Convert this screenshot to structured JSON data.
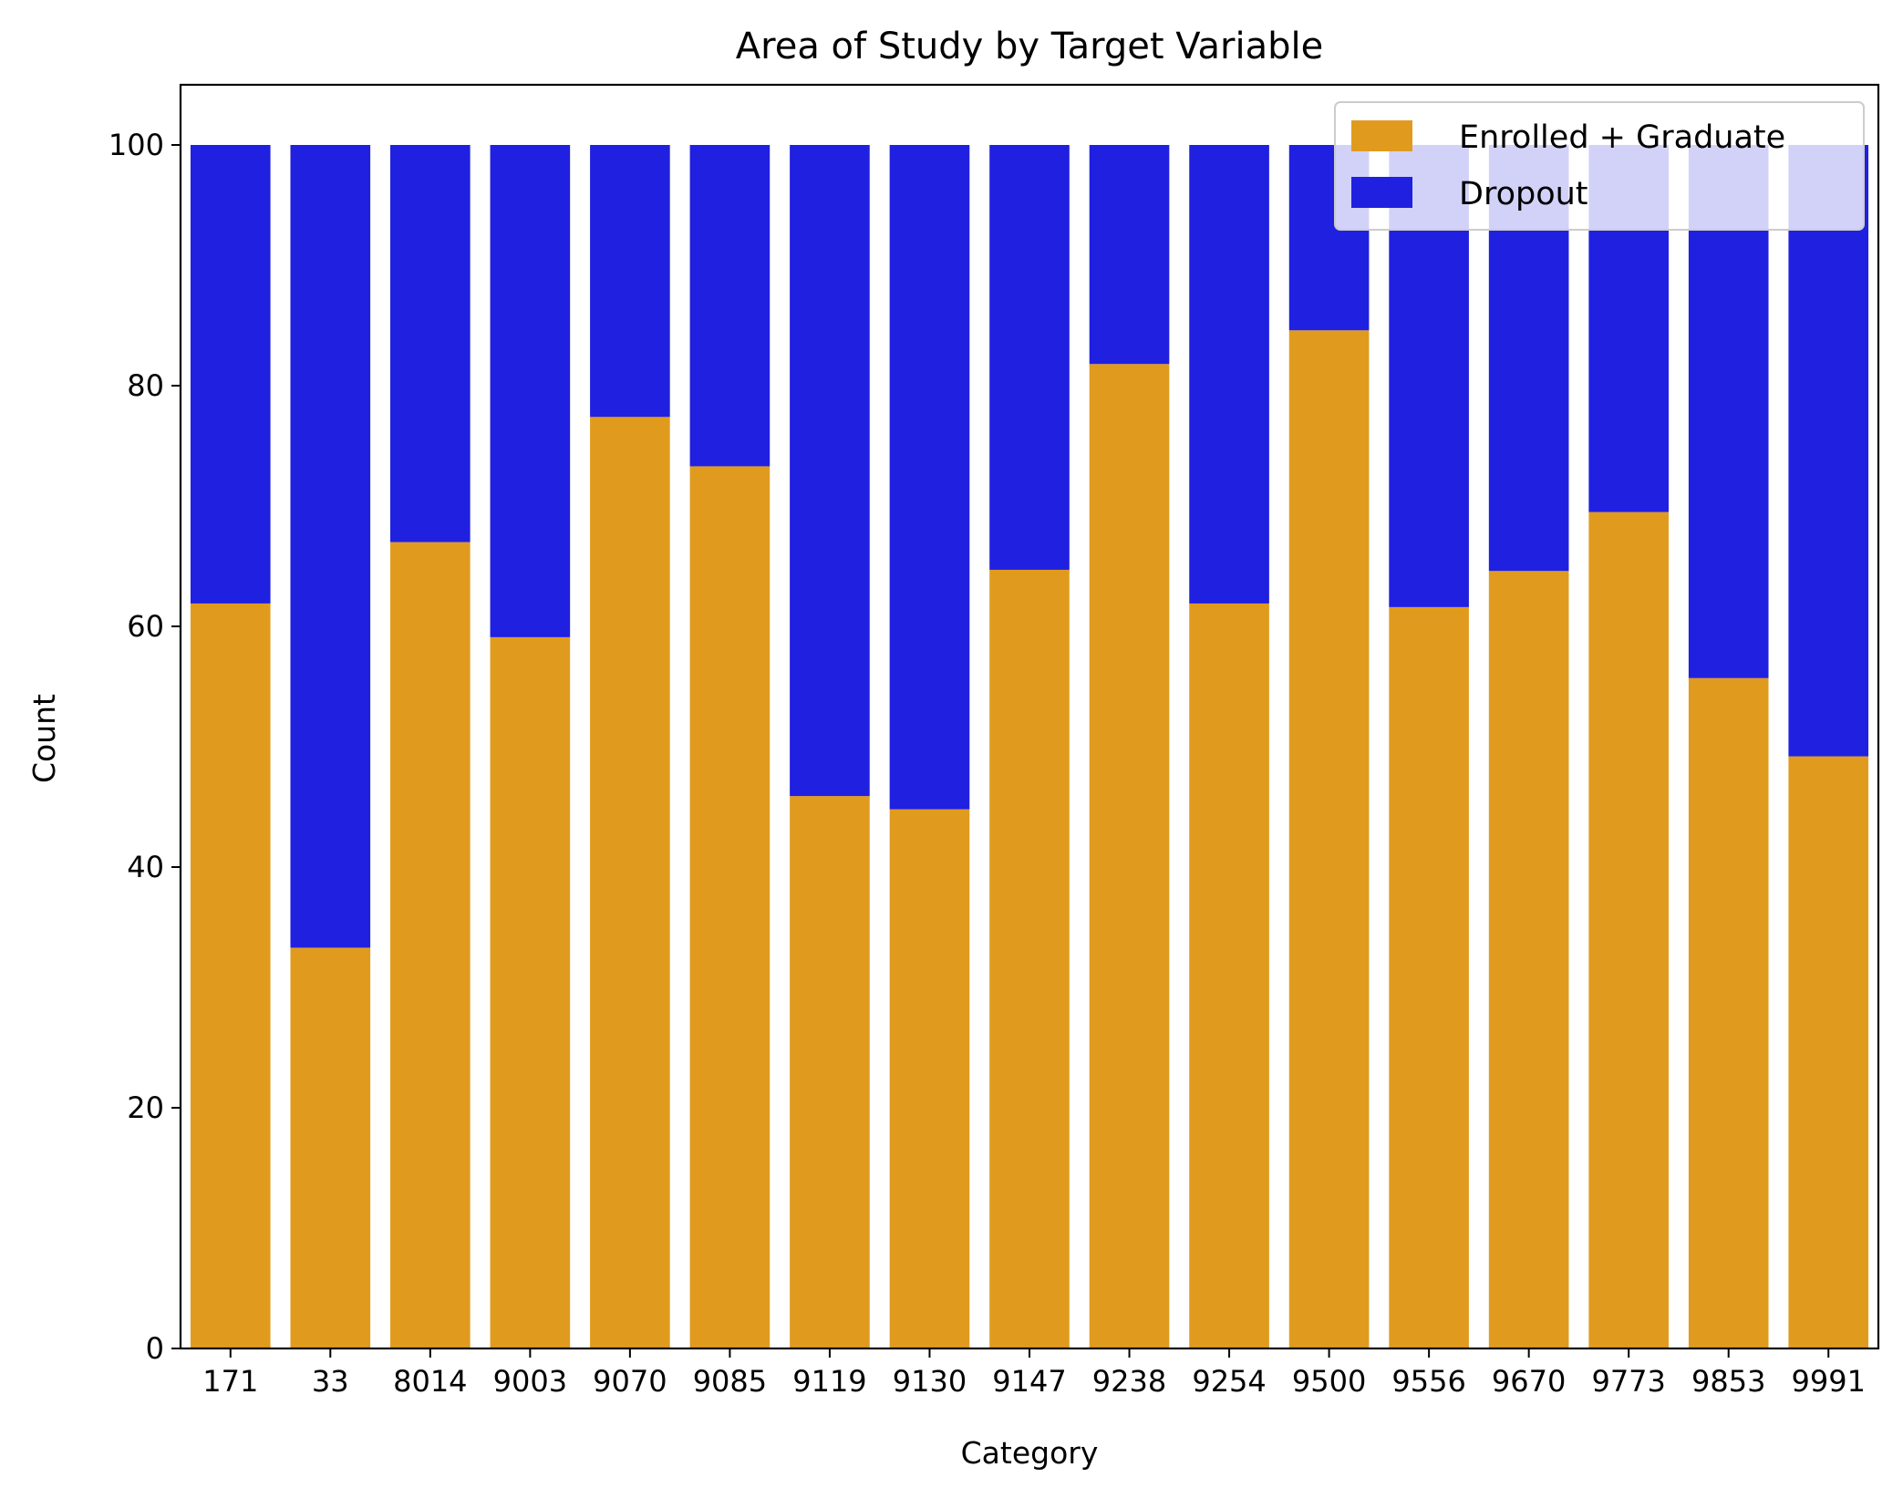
{
  "chart_data": {
    "type": "bar",
    "stacked": true,
    "title": "Area of Study by Target Variable",
    "xlabel": "Category",
    "ylabel": "Count",
    "ylim": [
      0,
      105
    ],
    "yticks": [
      0,
      20,
      40,
      60,
      80,
      100
    ],
    "grid": false,
    "legend_position": "top-right",
    "categories": [
      "171",
      "33",
      "8014",
      "9003",
      "9070",
      "9085",
      "9119",
      "9130",
      "9147",
      "9238",
      "9254",
      "9500",
      "9556",
      "9670",
      "9773",
      "9853",
      "9991"
    ],
    "series": [
      {
        "name": "Enrolled + Graduate",
        "color": "#e09b1f",
        "values": [
          61.9,
          33.3,
          67.0,
          59.1,
          77.4,
          73.3,
          45.9,
          44.8,
          64.7,
          81.8,
          61.9,
          84.6,
          61.6,
          64.6,
          69.5,
          55.7,
          49.2
        ]
      },
      {
        "name": "Dropout",
        "color": "#2020e0",
        "values": [
          38.1,
          66.7,
          33.0,
          40.9,
          22.6,
          26.7,
          54.1,
          55.2,
          35.3,
          18.2,
          38.1,
          15.4,
          38.4,
          35.4,
          30.5,
          44.3,
          50.8
        ]
      }
    ]
  }
}
